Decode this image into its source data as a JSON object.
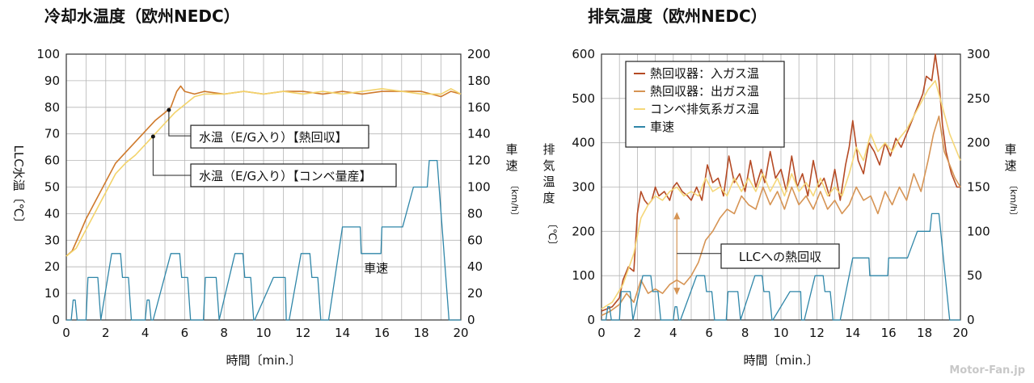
{
  "chart_data": [
    {
      "type": "line",
      "title": "冷却水温度（欧州NEDC）",
      "xlabel": "時間〔min.〕",
      "ylabel": "LLC水温〔℃〕",
      "y2label_chars": [
        "車",
        "速"
      ],
      "y2unit": "〔km/h〕",
      "xlim": [
        0,
        20
      ],
      "ylim": [
        0,
        100
      ],
      "y2lim": [
        0,
        200
      ],
      "xticks": [
        0,
        2,
        4,
        6,
        8,
        10,
        12,
        14,
        16,
        18,
        20
      ],
      "yticks": [
        0,
        10,
        20,
        30,
        40,
        50,
        60,
        70,
        80,
        90,
        100
      ],
      "y2ticks": [
        0,
        20,
        40,
        60,
        80,
        100,
        120,
        140,
        160,
        180,
        200
      ],
      "grid": true,
      "annotations": [
        {
          "text": "水温（E/G入り）【熱回収】",
          "point": [
            5.2,
            79
          ]
        },
        {
          "text": "水温（E/G入り）【コンベ量産】",
          "point": [
            4.4,
            69
          ]
        },
        {
          "text": "車速",
          "near": [
            15.7,
            18
          ]
        }
      ],
      "series": [
        {
          "name": "水温（E/G入り）【熱回収】",
          "color": "#cf7a2c",
          "axis": "left",
          "x": [
            0,
            0.3,
            0.6,
            1.0,
            1.5,
            2.0,
            2.5,
            3.0,
            3.5,
            4.0,
            4.5,
            5.0,
            5.3,
            5.6,
            5.8,
            6.0,
            6.5,
            7,
            8,
            9,
            10,
            11,
            12,
            13,
            14,
            15,
            16,
            17,
            18,
            19,
            19.5,
            20
          ],
          "y": [
            24,
            26,
            31,
            38,
            45,
            52,
            59,
            63,
            67,
            71,
            75,
            78,
            80,
            86,
            88,
            86,
            85,
            86,
            85,
            86,
            85,
            86,
            86,
            85,
            86,
            85,
            86,
            86,
            86,
            84,
            86,
            85
          ]
        },
        {
          "name": "水温（E/G入り）【コンベ量産】",
          "color": "#f3d36b",
          "axis": "left",
          "x": [
            0,
            0.5,
            1.0,
            1.5,
            2.0,
            2.5,
            3.0,
            3.5,
            4.0,
            4.5,
            5.0,
            5.5,
            6.0,
            6.5,
            7,
            8,
            9,
            10,
            11,
            12,
            13,
            14,
            15,
            16,
            17,
            18,
            19,
            19.5,
            20
          ],
          "y": [
            24,
            27,
            34,
            41,
            48,
            55,
            59,
            62,
            66,
            70,
            74,
            78,
            81,
            84,
            85,
            85,
            86,
            85,
            86,
            85,
            86,
            85,
            86,
            87,
            86,
            85,
            85,
            87,
            85
          ]
        },
        {
          "name": "車速",
          "color": "#2f86a8",
          "axis": "right",
          "x": [
            0,
            0.25,
            0.35,
            0.45,
            0.55,
            1.0,
            1.1,
            1.15,
            1.55,
            1.6,
            1.75,
            2.3,
            2.45,
            2.75,
            2.85,
            3.15,
            3.3,
            3.35,
            3.4,
            4.0,
            4.1,
            4.2,
            4.3,
            4.4,
            5.3,
            5.45,
            5.75,
            5.85,
            6.15,
            6.3,
            6.35,
            6.95,
            7.05,
            7.55,
            7.6,
            7.75,
            8.55,
            8.65,
            8.95,
            9.05,
            9.35,
            9.5,
            9.55,
            10.5,
            10.6,
            11.1,
            11.15,
            11.3,
            11.9,
            12.05,
            12.35,
            12.45,
            12.75,
            12.9,
            12.95,
            13.3,
            14.0,
            14.05,
            14.9,
            14.95,
            15.95,
            16.0,
            17.0,
            17.05,
            17.6,
            17.7,
            18.3,
            18.4,
            18.7,
            18.8,
            19.4,
            19.5,
            20
          ],
          "y": [
            0,
            0,
            15,
            15,
            0,
            0,
            32,
            32,
            32,
            32,
            0,
            50,
            50,
            50,
            32,
            32,
            0,
            0,
            0,
            0,
            15,
            15,
            0,
            0,
            50,
            50,
            50,
            32,
            32,
            0,
            0,
            0,
            32,
            32,
            32,
            0,
            50,
            50,
            50,
            32,
            32,
            0,
            0,
            32,
            32,
            32,
            0,
            0,
            50,
            50,
            50,
            32,
            32,
            0,
            0,
            0,
            70,
            70,
            70,
            50,
            50,
            70,
            70,
            70,
            100,
            100,
            100,
            120,
            120,
            120,
            0,
            0,
            0
          ]
        }
      ]
    },
    {
      "type": "line",
      "title": "排気温度（欧州NEDC）",
      "xlabel": "時間〔min.〕",
      "ylabel_chars": [
        "排",
        "気",
        "温",
        "度"
      ],
      "yunit": "〔℃〕",
      "y2label_chars": [
        "車",
        "速"
      ],
      "y2unit": "〔km/h〕",
      "xlim": [
        0,
        20
      ],
      "ylim": [
        0,
        600
      ],
      "y2lim": [
        0,
        300
      ],
      "xticks": [
        0,
        2,
        4,
        6,
        8,
        10,
        12,
        14,
        16,
        18,
        20
      ],
      "yticks": [
        0,
        100,
        200,
        300,
        400,
        500,
        600
      ],
      "y2ticks": [
        0,
        50,
        100,
        150,
        200,
        250,
        300
      ],
      "grid": true,
      "legend": "top-left",
      "annotations": [
        {
          "text": "LLCへの熱回収",
          "range": [
            4.2,
            60,
            240
          ]
        }
      ],
      "series": [
        {
          "name": "熱回収器：入ガス温",
          "color": "#b54a24",
          "axis": "left",
          "x": [
            0,
            0.6,
            1.0,
            1.2,
            1.5,
            1.8,
            2.0,
            2.2,
            2.4,
            2.6,
            2.8,
            3.0,
            3.2,
            3.5,
            3.8,
            4.0,
            4.2,
            4.5,
            4.8,
            5.0,
            5.3,
            5.6,
            5.9,
            6.2,
            6.5,
            6.8,
            7.1,
            7.4,
            7.7,
            8.0,
            8.3,
            8.6,
            8.9,
            9.1,
            9.4,
            9.7,
            10.0,
            10.3,
            10.6,
            10.9,
            11.2,
            11.5,
            11.8,
            12.1,
            12.4,
            12.7,
            13.0,
            13.3,
            13.6,
            13.8,
            14.0,
            14.3,
            14.6,
            14.9,
            15.2,
            15.5,
            15.8,
            16.1,
            16.4,
            16.7,
            17.0,
            17.3,
            17.6,
            17.9,
            18.1,
            18.4,
            18.6,
            18.8,
            19.0,
            19.2,
            19.5,
            19.8,
            20
          ],
          "y": [
            20,
            30,
            50,
            90,
            120,
            110,
            240,
            290,
            270,
            260,
            270,
            300,
            280,
            290,
            270,
            300,
            310,
            290,
            280,
            270,
            300,
            270,
            350,
            310,
            320,
            280,
            370,
            310,
            330,
            290,
            360,
            300,
            340,
            310,
            380,
            320,
            340,
            290,
            370,
            300,
            330,
            280,
            360,
            300,
            320,
            280,
            340,
            270,
            350,
            390,
            450,
            360,
            330,
            400,
            380,
            350,
            400,
            370,
            410,
            390,
            420,
            450,
            480,
            510,
            550,
            540,
            600,
            540,
            440,
            380,
            330,
            300,
            300
          ]
        },
        {
          "name": "熱回収器：出ガス温",
          "color": "#d69454",
          "axis": "left",
          "x": [
            0,
            0.5,
            1.0,
            1.4,
            1.8,
            2.2,
            2.6,
            3.0,
            3.4,
            3.8,
            4.2,
            4.6,
            5.0,
            5.4,
            5.8,
            6.2,
            6.6,
            7.0,
            7.4,
            7.8,
            8.2,
            8.6,
            9.0,
            9.4,
            9.8,
            10.2,
            10.6,
            11.0,
            11.4,
            11.8,
            12.2,
            12.6,
            13.0,
            13.4,
            13.8,
            14.2,
            14.6,
            15.0,
            15.4,
            15.8,
            16.2,
            16.6,
            17.0,
            17.4,
            17.8,
            18.2,
            18.5,
            18.8,
            19.1,
            19.4,
            19.7,
            20
          ],
          "y": [
            10,
            20,
            35,
            60,
            40,
            90,
            60,
            70,
            60,
            80,
            90,
            80,
            100,
            130,
            180,
            200,
            230,
            250,
            240,
            280,
            260,
            250,
            300,
            260,
            290,
            250,
            300,
            260,
            280,
            250,
            290,
            250,
            270,
            240,
            260,
            300,
            270,
            280,
            240,
            290,
            260,
            300,
            270,
            330,
            290,
            360,
            420,
            460,
            380,
            350,
            320,
            300
          ]
        },
        {
          "name": "コンベ排気系ガス温",
          "color": "#f5d778",
          "axis": "left",
          "x": [
            0,
            0.6,
            1.2,
            1.8,
            2.2,
            2.6,
            3.0,
            3.4,
            3.8,
            4.2,
            4.6,
            5.0,
            5.4,
            5.8,
            6.2,
            6.6,
            7.0,
            7.4,
            7.8,
            8.2,
            8.6,
            9.0,
            9.4,
            9.8,
            10.2,
            10.6,
            11.0,
            11.4,
            11.8,
            12.2,
            12.6,
            13.0,
            13.4,
            13.8,
            14.2,
            14.6,
            15.0,
            15.4,
            15.8,
            16.2,
            16.6,
            17.0,
            17.4,
            17.8,
            18.2,
            18.6,
            19.0,
            19.4,
            19.7,
            20
          ],
          "y": [
            25,
            40,
            80,
            150,
            230,
            260,
            280,
            270,
            290,
            300,
            280,
            290,
            280,
            320,
            290,
            300,
            280,
            320,
            290,
            320,
            290,
            330,
            290,
            320,
            280,
            330,
            290,
            310,
            280,
            320,
            280,
            300,
            280,
            330,
            390,
            360,
            420,
            380,
            400,
            380,
            410,
            430,
            460,
            490,
            520,
            540,
            480,
            420,
            390,
            360
          ]
        },
        {
          "name": "車速",
          "color": "#2f86a8",
          "axis": "right",
          "x": [
            0,
            0.25,
            0.35,
            0.45,
            0.55,
            1.0,
            1.1,
            1.15,
            1.55,
            1.6,
            1.75,
            2.3,
            2.45,
            2.75,
            2.85,
            3.15,
            3.3,
            3.35,
            3.4,
            4.0,
            4.1,
            4.2,
            4.3,
            4.4,
            5.3,
            5.45,
            5.75,
            5.85,
            6.15,
            6.3,
            6.35,
            6.95,
            7.05,
            7.55,
            7.6,
            7.75,
            8.55,
            8.65,
            8.95,
            9.05,
            9.35,
            9.5,
            9.55,
            10.5,
            10.6,
            11.1,
            11.15,
            11.3,
            11.9,
            12.05,
            12.35,
            12.45,
            12.75,
            12.9,
            12.95,
            13.3,
            14.0,
            14.05,
            14.9,
            14.95,
            15.95,
            16.0,
            17.0,
            17.05,
            17.6,
            17.7,
            18.3,
            18.4,
            18.7,
            18.8,
            19.4,
            19.5,
            20
          ],
          "y": [
            0,
            0,
            15,
            15,
            0,
            0,
            32,
            32,
            32,
            32,
            0,
            50,
            50,
            50,
            32,
            32,
            0,
            0,
            0,
            0,
            15,
            15,
            0,
            0,
            50,
            50,
            50,
            32,
            32,
            0,
            0,
            0,
            32,
            32,
            32,
            0,
            50,
            50,
            50,
            32,
            32,
            0,
            0,
            32,
            32,
            32,
            0,
            0,
            50,
            50,
            50,
            32,
            32,
            0,
            0,
            0,
            70,
            70,
            70,
            50,
            50,
            70,
            70,
            70,
            100,
            100,
            100,
            120,
            120,
            120,
            0,
            0,
            0
          ]
        }
      ]
    }
  ],
  "watermark": "Motor-Fan.jp"
}
